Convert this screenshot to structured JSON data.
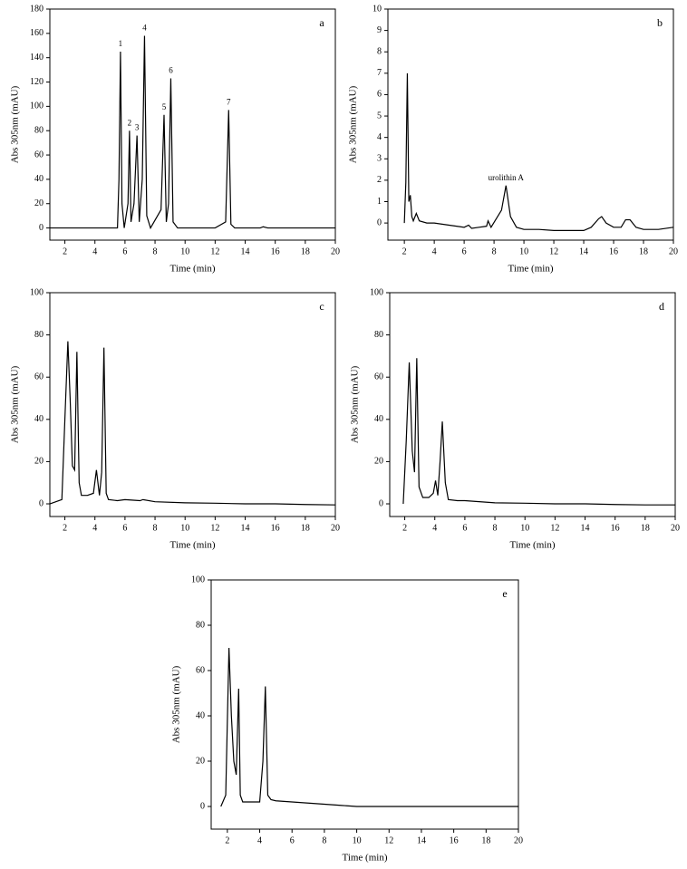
{
  "chart_data": [
    {
      "type": "line",
      "label": "a",
      "xlabel": "Time (min)",
      "ylabel": "Abs 305nm (mAU)",
      "color": "#000000",
      "xlim": [
        1,
        20
      ],
      "ylim": [
        -10,
        180
      ],
      "xticks": [
        2,
        4,
        6,
        8,
        10,
        12,
        14,
        16,
        18,
        20
      ],
      "yticks": [
        0,
        20,
        40,
        60,
        80,
        100,
        120,
        140,
        160,
        180
      ],
      "x": [
        1,
        2,
        3,
        4,
        5,
        5.5,
        5.6,
        5.7,
        5.8,
        5.95,
        6.2,
        6.3,
        6.4,
        6.6,
        6.8,
        6.95,
        7.15,
        7.3,
        7.45,
        7.7,
        8.4,
        8.6,
        8.75,
        8.9,
        9.05,
        9.2,
        9.5,
        10,
        11,
        12,
        12.7,
        12.9,
        13.05,
        13.3,
        14,
        15,
        15.2,
        15.5,
        16,
        17,
        18,
        19,
        20
      ],
      "values": [
        0,
        0,
        0,
        0,
        0,
        0,
        40,
        145,
        20,
        0,
        20,
        80,
        5,
        20,
        76,
        5,
        40,
        158,
        10,
        0,
        15,
        93,
        5,
        20,
        123,
        5,
        0,
        0,
        0,
        0,
        5,
        97,
        3,
        0,
        0,
        0,
        1,
        0,
        0,
        0,
        0,
        0,
        0
      ],
      "annotations": [
        {
          "text": "1",
          "x": 5.7
        },
        {
          "text": "2",
          "x": 6.3
        },
        {
          "text": "3",
          "x": 6.8
        },
        {
          "text": "4",
          "x": 7.3
        },
        {
          "text": "5",
          "x": 8.6
        },
        {
          "text": "6",
          "x": 9.05
        },
        {
          "text": "7",
          "x": 12.9
        }
      ]
    },
    {
      "type": "line",
      "label": "b",
      "xlabel": "Time (min)",
      "ylabel": "Abs 305nm (mAU)",
      "color": "#000000",
      "xlim": [
        0.9,
        20
      ],
      "ylim": [
        -0.8,
        10
      ],
      "xticks": [
        2,
        4,
        6,
        8,
        10,
        12,
        14,
        16,
        18,
        20
      ],
      "yticks": [
        0,
        1,
        2,
        3,
        4,
        5,
        6,
        7,
        8,
        9,
        10
      ],
      "x": [
        2.0,
        2.1,
        2.2,
        2.3,
        2.4,
        2.5,
        2.6,
        2.8,
        3.0,
        3.5,
        4,
        5,
        6,
        6.3,
        6.5,
        7,
        7.5,
        7.6,
        7.8,
        8.5,
        8.8,
        9.1,
        9.5,
        10,
        11,
        12,
        13,
        14,
        14.5,
        15,
        15.2,
        15.5,
        16,
        16.5,
        16.8,
        17.1,
        17.5,
        18,
        19,
        20
      ],
      "values": [
        0,
        1.9,
        7.0,
        1.0,
        1.3,
        0.3,
        0.1,
        0.45,
        0.1,
        0.0,
        0,
        -0.1,
        -0.2,
        -0.1,
        -0.25,
        -0.2,
        -0.15,
        0.1,
        -0.2,
        0.6,
        1.75,
        0.3,
        -0.2,
        -0.3,
        -0.3,
        -0.35,
        -0.35,
        -0.35,
        -0.2,
        0.2,
        0.3,
        0,
        -0.2,
        -0.2,
        0.15,
        0.15,
        -0.2,
        -0.3,
        -0.3,
        -0.2
      ],
      "annotations": [
        {
          "text": "urolithin A",
          "x": 8.8
        }
      ]
    },
    {
      "type": "line",
      "label": "c",
      "xlabel": "Time (min)",
      "ylabel": "Abs 305nm (mAU)",
      "color": "#000000",
      "xlim": [
        1,
        20
      ],
      "ylim": [
        -6,
        100
      ],
      "xticks": [
        2,
        4,
        6,
        8,
        10,
        12,
        14,
        16,
        18,
        20
      ],
      "yticks": [
        0,
        20,
        40,
        60,
        80,
        100
      ],
      "x": [
        1,
        1.8,
        2.0,
        2.2,
        2.35,
        2.5,
        2.65,
        2.8,
        2.95,
        3.1,
        3.5,
        3.9,
        4.1,
        4.3,
        4.45,
        4.6,
        4.75,
        4.9,
        5.5,
        6,
        7,
        7.2,
        8,
        10,
        12,
        14,
        16,
        18,
        20
      ],
      "values": [
        0,
        2,
        40,
        77,
        50,
        18,
        16,
        72,
        10,
        4,
        4,
        5,
        16,
        4,
        15,
        74,
        5,
        2,
        1.5,
        2,
        1.5,
        2,
        1,
        0.5,
        0.3,
        0,
        0,
        -0.3,
        -0.5
      ]
    },
    {
      "type": "line",
      "label": "d",
      "xlabel": "Time (min)",
      "ylabel": "Abs 305nm (mAU)",
      "color": "#000000",
      "xlim": [
        1,
        20
      ],
      "ylim": [
        -6,
        100
      ],
      "xticks": [
        2,
        4,
        6,
        8,
        10,
        12,
        14,
        16,
        18,
        20
      ],
      "yticks": [
        0,
        20,
        40,
        60,
        80,
        100
      ],
      "x": [
        1.9,
        2.1,
        2.3,
        2.5,
        2.65,
        2.8,
        2.95,
        3.2,
        3.6,
        3.9,
        4.05,
        4.2,
        4.35,
        4.5,
        4.7,
        4.9,
        5.5,
        6,
        8,
        10,
        12,
        14,
        16,
        18,
        20
      ],
      "values": [
        0,
        30,
        67,
        25,
        15,
        69,
        8,
        3,
        3,
        5,
        11,
        4,
        20,
        39,
        10,
        2,
        1.5,
        1.5,
        0.5,
        0.3,
        0,
        0,
        -0.3,
        -0.5,
        -0.5
      ]
    },
    {
      "type": "line",
      "label": "e",
      "xlabel": "Time (min)",
      "ylabel": "Abs 305nm (mAU)",
      "color": "#000000",
      "xlim": [
        1,
        20
      ],
      "ylim": [
        -10,
        100
      ],
      "xticks": [
        2,
        4,
        6,
        8,
        10,
        12,
        14,
        16,
        18,
        20
      ],
      "yticks": [
        0,
        20,
        40,
        60,
        80,
        100
      ],
      "x": [
        1.6,
        1.9,
        2.1,
        2.25,
        2.4,
        2.55,
        2.7,
        2.8,
        2.95,
        3.2,
        4,
        4.2,
        4.35,
        4.5,
        4.7,
        5,
        6,
        7,
        8,
        9,
        10,
        12,
        14,
        16,
        18,
        20
      ],
      "values": [
        0,
        5,
        70,
        40,
        20,
        14,
        52,
        5,
        2,
        2,
        2,
        20,
        53,
        5,
        3,
        2.5,
        2,
        1.5,
        1,
        0.5,
        0,
        0,
        0,
        0,
        0,
        0
      ]
    }
  ]
}
